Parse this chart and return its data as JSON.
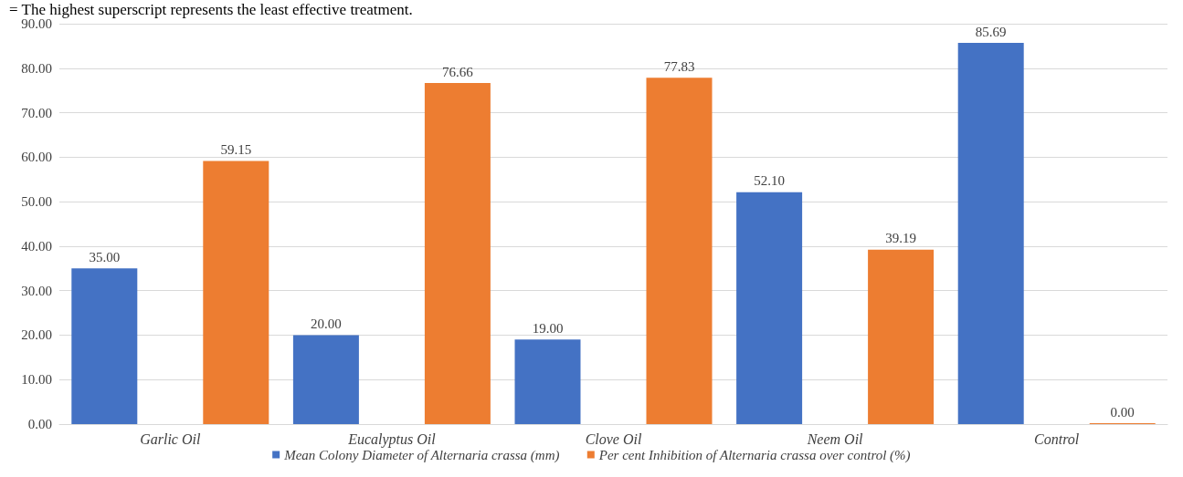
{
  "chart_data": {
    "type": "bar",
    "categories": [
      "Garlic Oil",
      "Eucalyptus Oil",
      "Clove Oil",
      "Neem Oil",
      "Control"
    ],
    "series": [
      {
        "name": "Mean Colony Diameter of Alternaria crassa (mm)",
        "color": "#4472c4",
        "values": [
          35.0,
          20.0,
          19.0,
          52.1,
          85.69
        ],
        "value_labels": [
          "35.00",
          "20.00",
          "19.00",
          "52.10",
          "85.69"
        ]
      },
      {
        "name": "Per cent Inhibition of Alternaria crassa over control (%)",
        "color": "#ed7d31",
        "values": [
          59.15,
          76.66,
          77.83,
          39.19,
          0.0
        ],
        "value_labels": [
          "59.15",
          "76.66",
          "77.83",
          "39.19",
          "0.00"
        ]
      }
    ],
    "ylim": [
      0,
      90
    ],
    "yticks": [
      {
        "value": 0,
        "label": "0.00"
      },
      {
        "value": 10,
        "label": "10.00"
      },
      {
        "value": 20,
        "label": "20.00"
      },
      {
        "value": 30,
        "label": "30.00"
      },
      {
        "value": 40,
        "label": "40.00"
      },
      {
        "value": 50,
        "label": "50.00"
      },
      {
        "value": 60,
        "label": "60.00"
      },
      {
        "value": 70,
        "label": "70.00"
      },
      {
        "value": 80,
        "label": "80.00"
      },
      {
        "value": 90,
        "label": "90.00"
      }
    ],
    "grid": "y",
    "legend": "bottom",
    "annotations": [
      "= The highest superscript represents the least effective treatment."
    ]
  }
}
